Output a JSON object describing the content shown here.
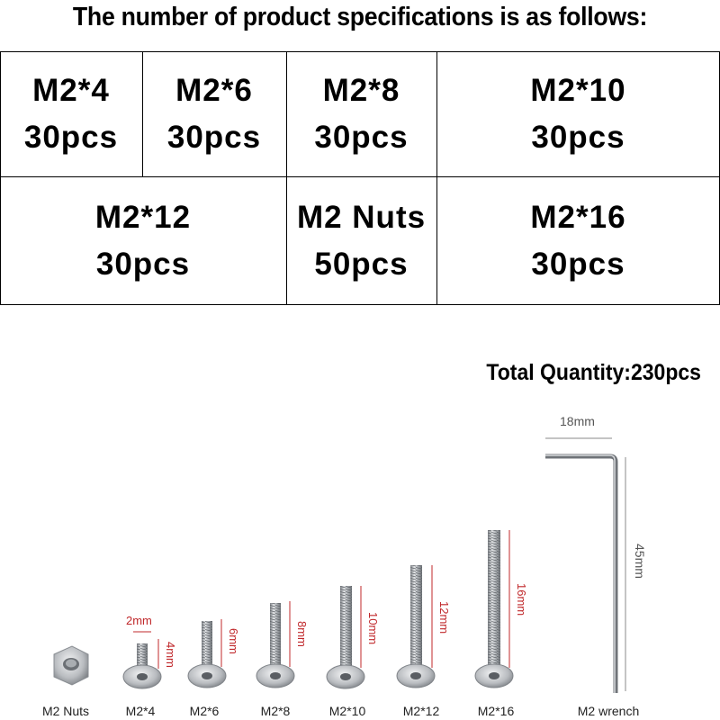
{
  "heading": "The number of product specifications is as follows:",
  "specs": [
    {
      "name": "M2*4",
      "qty": "30pcs"
    },
    {
      "name": "M2*6",
      "qty": "30pcs"
    },
    {
      "name": "M2*8",
      "qty": "30pcs"
    },
    {
      "name": "M2*10",
      "qty": "30pcs"
    },
    {
      "name": "M2*12",
      "qty": "30pcs"
    },
    {
      "name": "M2 Nuts",
      "qty": "50pcs"
    },
    {
      "name": "M2*16",
      "qty": "30pcs"
    }
  ],
  "total_quantity": "Total Quantity:230pcs",
  "items": [
    {
      "label": "M2 Nuts"
    },
    {
      "label": "M2*4",
      "width_dim": "2mm",
      "length_dim": "4mm"
    },
    {
      "label": "M2*6",
      "length_dim": "6mm"
    },
    {
      "label": "M2*8",
      "length_dim": "8mm"
    },
    {
      "label": "M2*10",
      "length_dim": "10mm"
    },
    {
      "label": "M2*12",
      "length_dim": "12mm"
    },
    {
      "label": "M2*16",
      "length_dim": "16mm"
    },
    {
      "label": "M2 wrench",
      "width_dim": "18mm",
      "length_dim": "45mm"
    }
  ],
  "colors": {
    "dimension": "#c0282b",
    "metal": "#b9bcc0"
  }
}
